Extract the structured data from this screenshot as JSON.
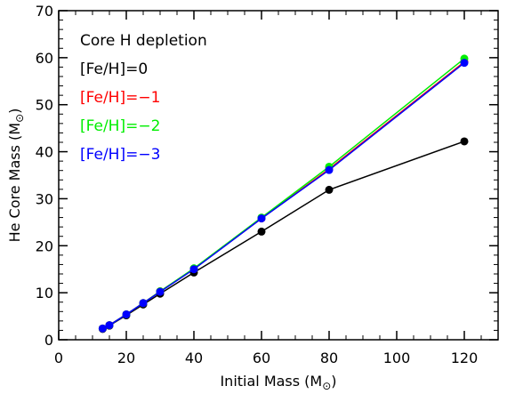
{
  "chart_data": {
    "type": "line",
    "title": "",
    "annotation": "Core H depletion",
    "xlabel": "Initial Mass (M",
    "xlabel_sub": "⊙",
    "xlabel_close": ")",
    "ylabel": "He Core Mass (M",
    "ylabel_sub": "⊙",
    "ylabel_close": ")",
    "xlim": [
      0,
      130
    ],
    "ylim": [
      0,
      70
    ],
    "xticks": [
      0,
      20,
      40,
      60,
      80,
      100,
      120
    ],
    "yticks": [
      0,
      10,
      20,
      30,
      40,
      50,
      60,
      70
    ],
    "x_minor_step": 5,
    "y_minor_step": 2,
    "grid": false,
    "legend_placement": "top-left",
    "x": [
      13,
      15,
      20,
      25,
      30,
      40,
      60,
      80,
      120
    ],
    "series": [
      {
        "name": "[Fe/H]=0",
        "color": "#000000",
        "values": [
          2.3,
          3.0,
          5.2,
          7.5,
          9.8,
          14.3,
          23.0,
          31.9,
          42.2
        ]
      },
      {
        "name": "[Fe/H]=−1",
        "color": "#ff0000",
        "values": [
          2.4,
          3.1,
          5.4,
          7.8,
          10.3,
          15.1,
          25.8,
          36.3,
          59.1
        ]
      },
      {
        "name": "[Fe/H]=−2",
        "color": "#00ee00",
        "values": [
          2.4,
          3.1,
          5.4,
          7.8,
          10.3,
          15.2,
          26.0,
          36.8,
          59.8
        ]
      },
      {
        "name": "[Fe/H]=−3",
        "color": "#0000ff",
        "values": [
          2.4,
          3.1,
          5.4,
          7.8,
          10.2,
          15.0,
          25.8,
          36.1,
          58.9
        ]
      }
    ]
  }
}
